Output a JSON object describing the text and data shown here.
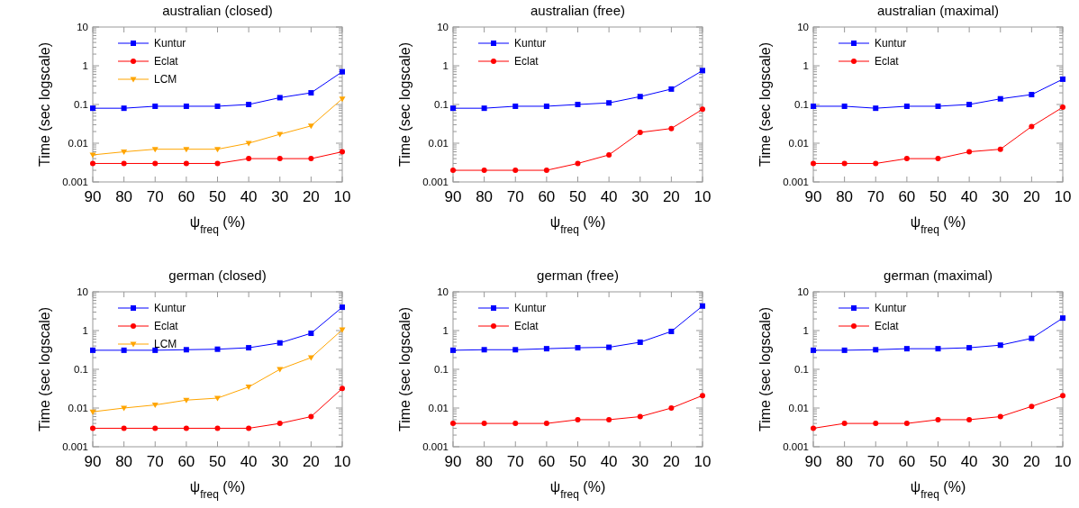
{
  "chart_data": [
    {
      "type": "line",
      "title": "australian (closed)",
      "xlabel": "ψ$_{freq}$ (%)",
      "ylabel": "Time (sec logscale)",
      "x": [
        90,
        80,
        70,
        60,
        50,
        40,
        30,
        20,
        10
      ],
      "xlim": [
        90,
        10
      ],
      "xticks": [
        90,
        80,
        70,
        60,
        50,
        40,
        30,
        20,
        10
      ],
      "ylim": [
        0.001,
        10
      ],
      "yticks": [
        0.001,
        0.01,
        0.1,
        1,
        10
      ],
      "log": "y",
      "legend": "top left",
      "series": [
        {
          "name": "Kuntur",
          "color": "#0000ff",
          "marker": "square",
          "values": [
            0.08,
            0.08,
            0.09,
            0.09,
            0.09,
            0.1,
            0.15,
            0.2,
            0.7
          ]
        },
        {
          "name": "Eclat",
          "color": "#ff0000",
          "marker": "circle",
          "values": [
            0.003,
            0.003,
            0.003,
            0.003,
            0.003,
            0.004,
            0.004,
            0.004,
            0.006
          ]
        },
        {
          "name": "LCM",
          "color": "#ffa500",
          "marker": "triangle",
          "values": [
            0.005,
            0.006,
            0.007,
            0.007,
            0.007,
            0.01,
            0.017,
            0.028,
            0.14
          ]
        }
      ]
    },
    {
      "type": "line",
      "title": "australian (free)",
      "xlabel": "ψ$_{freq}$ (%)",
      "ylabel": "Time (sec logscale)",
      "x": [
        90,
        80,
        70,
        60,
        50,
        40,
        30,
        20,
        10
      ],
      "xlim": [
        90,
        10
      ],
      "xticks": [
        90,
        80,
        70,
        60,
        50,
        40,
        30,
        20,
        10
      ],
      "ylim": [
        0.001,
        10
      ],
      "yticks": [
        0.001,
        0.01,
        0.1,
        1,
        10
      ],
      "log": "y",
      "legend": "top left",
      "series": [
        {
          "name": "Kuntur",
          "color": "#0000ff",
          "marker": "square",
          "values": [
            0.08,
            0.08,
            0.09,
            0.09,
            0.1,
            0.11,
            0.16,
            0.25,
            0.75
          ]
        },
        {
          "name": "Eclat",
          "color": "#ff0000",
          "marker": "circle",
          "values": [
            0.002,
            0.002,
            0.002,
            0.002,
            0.003,
            0.005,
            0.019,
            0.024,
            0.075
          ]
        }
      ]
    },
    {
      "type": "line",
      "title": "australian (maximal)",
      "xlabel": "ψ$_{freq}$ (%)",
      "ylabel": "Time (sec logscale)",
      "x": [
        90,
        80,
        70,
        60,
        50,
        40,
        30,
        20,
        10
      ],
      "xlim": [
        90,
        10
      ],
      "xticks": [
        90,
        80,
        70,
        60,
        50,
        40,
        30,
        20,
        10
      ],
      "ylim": [
        0.001,
        10
      ],
      "yticks": [
        0.001,
        0.01,
        0.1,
        1,
        10
      ],
      "log": "y",
      "legend": "top left",
      "series": [
        {
          "name": "Kuntur",
          "color": "#0000ff",
          "marker": "square",
          "values": [
            0.09,
            0.09,
            0.08,
            0.09,
            0.09,
            0.1,
            0.14,
            0.18,
            0.45
          ]
        },
        {
          "name": "Eclat",
          "color": "#ff0000",
          "marker": "circle",
          "values": [
            0.003,
            0.003,
            0.003,
            0.004,
            0.004,
            0.006,
            0.007,
            0.027,
            0.085
          ]
        }
      ]
    },
    {
      "type": "line",
      "title": "german (closed)",
      "xlabel": "ψ$_{freq}$ (%)",
      "ylabel": "Time (sec logscale)",
      "x": [
        90,
        80,
        70,
        60,
        50,
        40,
        30,
        20,
        10
      ],
      "xlim": [
        90,
        10
      ],
      "xticks": [
        90,
        80,
        70,
        60,
        50,
        40,
        30,
        20,
        10
      ],
      "ylim": [
        0.001,
        10
      ],
      "yticks": [
        0.001,
        0.01,
        0.1,
        1,
        10
      ],
      "log": "y",
      "legend": "top left",
      "series": [
        {
          "name": "Kuntur",
          "color": "#0000ff",
          "marker": "square",
          "values": [
            0.31,
            0.31,
            0.31,
            0.32,
            0.33,
            0.36,
            0.48,
            0.85,
            4
          ]
        },
        {
          "name": "Eclat",
          "color": "#ff0000",
          "marker": "circle",
          "values": [
            0.003,
            0.003,
            0.003,
            0.003,
            0.003,
            0.003,
            0.004,
            0.006,
            0.032
          ]
        },
        {
          "name": "LCM",
          "color": "#ffa500",
          "marker": "triangle",
          "values": [
            0.008,
            0.01,
            0.012,
            0.016,
            0.018,
            0.035,
            0.1,
            0.2,
            1.05
          ]
        }
      ]
    },
    {
      "type": "line",
      "title": "german (free)",
      "xlabel": "ψ$_{freq}$ (%)",
      "ylabel": "Time (sec logscale)",
      "x": [
        90,
        80,
        70,
        60,
        50,
        40,
        30,
        20,
        10
      ],
      "xlim": [
        90,
        10
      ],
      "xticks": [
        90,
        80,
        70,
        60,
        50,
        40,
        30,
        20,
        10
      ],
      "ylim": [
        0.001,
        10
      ],
      "yticks": [
        0.001,
        0.01,
        0.1,
        1,
        10
      ],
      "log": "y",
      "legend": "top left",
      "series": [
        {
          "name": "Kuntur",
          "color": "#0000ff",
          "marker": "square",
          "values": [
            0.31,
            0.32,
            0.32,
            0.34,
            0.36,
            0.37,
            0.5,
            0.95,
            4.3
          ]
        },
        {
          "name": "Eclat",
          "color": "#ff0000",
          "marker": "circle",
          "values": [
            0.004,
            0.004,
            0.004,
            0.004,
            0.005,
            0.005,
            0.006,
            0.01,
            0.021
          ]
        }
      ]
    },
    {
      "type": "line",
      "title": "german (maximal)",
      "xlabel": "ψ$_{freq}$ (%)",
      "ylabel": "Time (sec logscale)",
      "x": [
        90,
        80,
        70,
        60,
        50,
        40,
        30,
        20,
        10
      ],
      "xlim": [
        90,
        10
      ],
      "xticks": [
        90,
        80,
        70,
        60,
        50,
        40,
        30,
        20,
        10
      ],
      "ylim": [
        0.001,
        10
      ],
      "yticks": [
        0.001,
        0.01,
        0.1,
        1,
        10
      ],
      "log": "y",
      "legend": "top left",
      "series": [
        {
          "name": "Kuntur",
          "color": "#0000ff",
          "marker": "square",
          "values": [
            0.31,
            0.31,
            0.32,
            0.34,
            0.34,
            0.36,
            0.42,
            0.63,
            2.1
          ]
        },
        {
          "name": "Eclat",
          "color": "#ff0000",
          "marker": "circle",
          "values": [
            0.003,
            0.004,
            0.004,
            0.004,
            0.005,
            0.005,
            0.006,
            0.011,
            0.021
          ]
        }
      ]
    }
  ]
}
